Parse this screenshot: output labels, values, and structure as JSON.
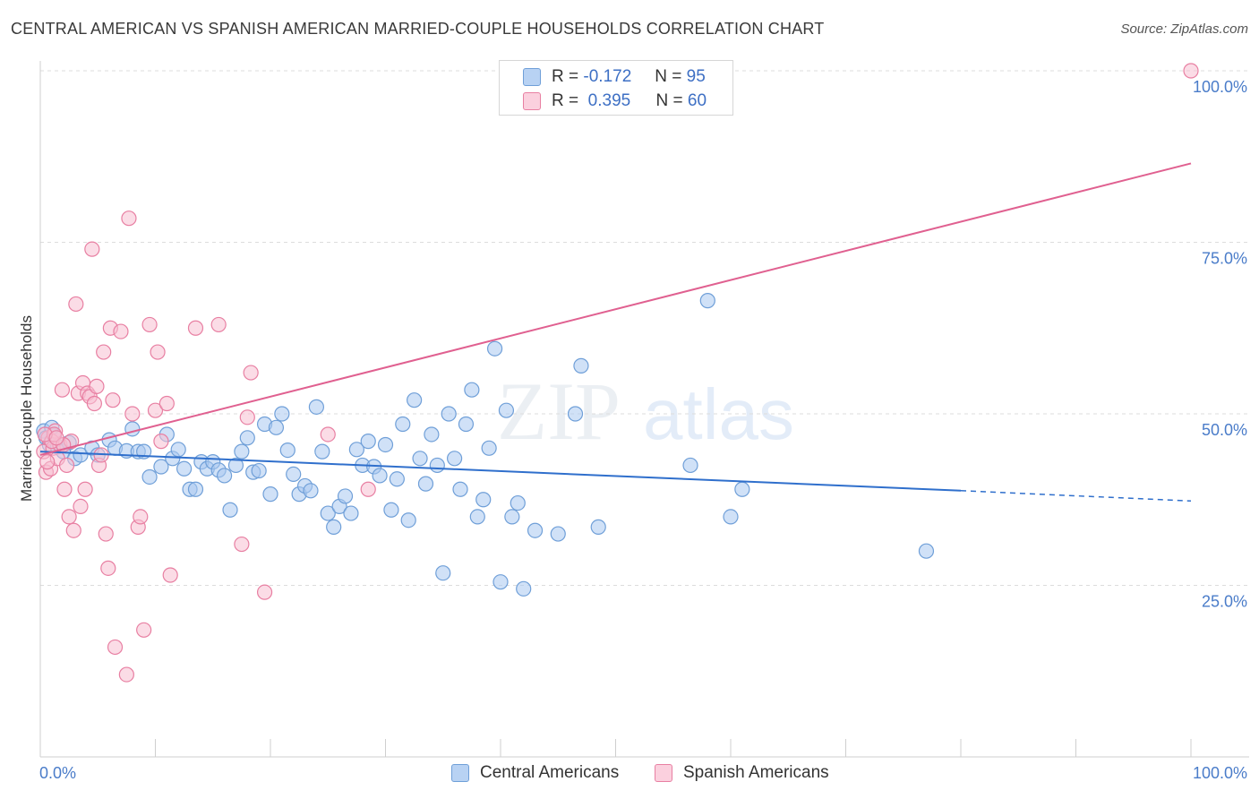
{
  "title": "CENTRAL AMERICAN VS SPANISH AMERICAN MARRIED-COUPLE HOUSEHOLDS CORRELATION CHART",
  "source": "Source: ZipAtlas.com",
  "legend": {
    "r_label": "R =",
    "n_label": "N =",
    "blue": {
      "r": "-0.172",
      "n": "95"
    },
    "pink": {
      "r": "0.395",
      "n": "60"
    }
  },
  "colors": {
    "blue_fill": "#a9c8f0",
    "blue_stroke": "#6f9fd8",
    "blue_line": "#2f6fcc",
    "pink_fill": "#f8c0d2",
    "pink_stroke": "#e87fa2",
    "pink_line": "#e06090",
    "tick_text": "#4a7cc9"
  },
  "chart_data": {
    "type": "scatter",
    "title": "CENTRAL AMERICAN VS SPANISH AMERICAN MARRIED-COUPLE HOUSEHOLDS CORRELATION CHART",
    "xlabel": "",
    "ylabel": "Married-couple Households",
    "xlim": [
      0,
      100
    ],
    "ylim": [
      0,
      100
    ],
    "x_tick_labels": [
      "0.0%",
      "100.0%"
    ],
    "y_ticks": [
      25,
      50,
      75,
      100
    ],
    "y_tick_labels": [
      "25.0%",
      "50.0%",
      "75.0%",
      "100.0%"
    ],
    "grid": true,
    "series": [
      {
        "name": "Central Americans",
        "r": -0.172,
        "n": 95,
        "trend": {
          "x0": 0,
          "y0": 44.5,
          "x1": 80,
          "y1": 38.8,
          "dash_to_x": 100,
          "dash_to_y": 37.3
        },
        "points": [
          [
            0.3,
            47.5
          ],
          [
            0.5,
            46.5
          ],
          [
            0.8,
            45.5
          ],
          [
            1.2,
            46.8
          ],
          [
            1.5,
            45.2
          ],
          [
            2,
            44.5
          ],
          [
            2.5,
            45.8
          ],
          [
            3,
            43.5
          ],
          [
            3.5,
            44.0
          ],
          [
            4.5,
            45.0
          ],
          [
            5,
            44.0
          ],
          [
            6,
            46.2
          ],
          [
            6.5,
            45.0
          ],
          [
            7.5,
            44.6
          ],
          [
            8,
            47.8
          ],
          [
            8.5,
            44.5
          ],
          [
            9,
            44.5
          ],
          [
            9.5,
            40.8
          ],
          [
            10.5,
            42.3
          ],
          [
            11,
            47.0
          ],
          [
            11.5,
            43.5
          ],
          [
            12,
            44.8
          ],
          [
            12.5,
            42.0
          ],
          [
            13,
            39.0
          ],
          [
            13.5,
            39.0
          ],
          [
            14,
            43.0
          ],
          [
            14.5,
            42.0
          ],
          [
            15,
            43.0
          ],
          [
            15.5,
            41.8
          ],
          [
            16,
            41.0
          ],
          [
            16.5,
            36.0
          ],
          [
            17,
            42.5
          ],
          [
            17.5,
            44.5
          ],
          [
            18,
            46.5
          ],
          [
            18.5,
            41.5
          ],
          [
            19,
            41.7
          ],
          [
            19.5,
            48.5
          ],
          [
            20,
            38.3
          ],
          [
            20.5,
            48.0
          ],
          [
            21,
            50.0
          ],
          [
            21.5,
            44.7
          ],
          [
            22,
            41.2
          ],
          [
            22.5,
            38.3
          ],
          [
            23,
            39.5
          ],
          [
            23.5,
            38.8
          ],
          [
            24,
            51.0
          ],
          [
            24.5,
            44.5
          ],
          [
            25,
            35.5
          ],
          [
            25.5,
            33.5
          ],
          [
            26,
            36.5
          ],
          [
            26.5,
            38.0
          ],
          [
            27,
            35.5
          ],
          [
            27.5,
            44.8
          ],
          [
            28,
            42.5
          ],
          [
            28.5,
            46.0
          ],
          [
            29,
            42.3
          ],
          [
            29.5,
            41.0
          ],
          [
            30,
            45.5
          ],
          [
            30.5,
            36.0
          ],
          [
            31,
            40.5
          ],
          [
            31.5,
            48.5
          ],
          [
            32,
            34.5
          ],
          [
            32.5,
            52.0
          ],
          [
            33,
            43.5
          ],
          [
            33.5,
            39.8
          ],
          [
            34,
            47.0
          ],
          [
            34.5,
            42.5
          ],
          [
            35,
            26.8
          ],
          [
            35.5,
            50.0
          ],
          [
            36,
            43.5
          ],
          [
            36.5,
            39.0
          ],
          [
            37,
            48.5
          ],
          [
            37.5,
            53.5
          ],
          [
            38,
            35.0
          ],
          [
            38.5,
            37.5
          ],
          [
            39,
            45.0
          ],
          [
            39.5,
            59.5
          ],
          [
            40,
            25.5
          ],
          [
            40.5,
            50.5
          ],
          [
            41,
            35.0
          ],
          [
            41.5,
            37.0
          ],
          [
            42,
            24.5
          ],
          [
            43,
            33.0
          ],
          [
            45,
            32.5
          ],
          [
            46.5,
            50.0
          ],
          [
            47,
            57.0
          ],
          [
            48.5,
            33.5
          ],
          [
            56.5,
            42.5
          ],
          [
            58,
            66.5
          ],
          [
            60,
            35.0
          ],
          [
            61,
            39.0
          ],
          [
            77,
            30.0
          ],
          [
            1,
            48.0
          ]
        ]
      },
      {
        "name": "Spanish Americans",
        "r": 0.395,
        "n": 60,
        "trend": {
          "x0": 0,
          "y0": 44.0,
          "x1": 100,
          "y1": 86.5
        },
        "points": [
          [
            0.3,
            44.5
          ],
          [
            0.5,
            41.5
          ],
          [
            0.7,
            46.5
          ],
          [
            0.9,
            42.0
          ],
          [
            1.1,
            45.0
          ],
          [
            1.3,
            47.5
          ],
          [
            1.5,
            43.5
          ],
          [
            1.7,
            45.5
          ],
          [
            1.9,
            53.5
          ],
          [
            2.1,
            39.0
          ],
          [
            2.3,
            42.5
          ],
          [
            2.5,
            35.0
          ],
          [
            2.7,
            46.0
          ],
          [
            2.9,
            33.0
          ],
          [
            3.1,
            66.0
          ],
          [
            3.3,
            53.0
          ],
          [
            3.5,
            36.5
          ],
          [
            3.7,
            54.5
          ],
          [
            3.9,
            39.0
          ],
          [
            4.1,
            53.0
          ],
          [
            4.3,
            52.5
          ],
          [
            4.5,
            74.0
          ],
          [
            4.7,
            51.5
          ],
          [
            4.9,
            54.0
          ],
          [
            5.1,
            42.5
          ],
          [
            5.3,
            44.0
          ],
          [
            5.5,
            59.0
          ],
          [
            5.7,
            32.5
          ],
          [
            5.9,
            27.5
          ],
          [
            6.1,
            62.5
          ],
          [
            6.3,
            52.0
          ],
          [
            6.5,
            16.0
          ],
          [
            7.0,
            62.0
          ],
          [
            7.5,
            12.0
          ],
          [
            7.7,
            78.5
          ],
          [
            8.0,
            50.0
          ],
          [
            8.5,
            33.5
          ],
          [
            8.7,
            35.0
          ],
          [
            9.0,
            18.5
          ],
          [
            9.5,
            63.0
          ],
          [
            10.0,
            50.5
          ],
          [
            10.2,
            59.0
          ],
          [
            10.5,
            46.0
          ],
          [
            11.0,
            51.5
          ],
          [
            11.3,
            26.5
          ],
          [
            13.5,
            62.5
          ],
          [
            15.5,
            63.0
          ],
          [
            17.5,
            31.0
          ],
          [
            18.0,
            49.5
          ],
          [
            18.3,
            56.0
          ],
          [
            19.5,
            24.0
          ],
          [
            25.0,
            47.0
          ],
          [
            28.5,
            39.0
          ],
          [
            100,
            100
          ],
          [
            1.0,
            46.0
          ],
          [
            1.2,
            47.0
          ],
          [
            2.0,
            45.5
          ],
          [
            0.4,
            47.0
          ],
          [
            0.6,
            43.0
          ],
          [
            1.4,
            46.5
          ]
        ]
      }
    ]
  },
  "bottom_legend": {
    "blue_label": "Central Americans",
    "pink_label": "Spanish Americans"
  },
  "watermark": "ZIPatlas"
}
